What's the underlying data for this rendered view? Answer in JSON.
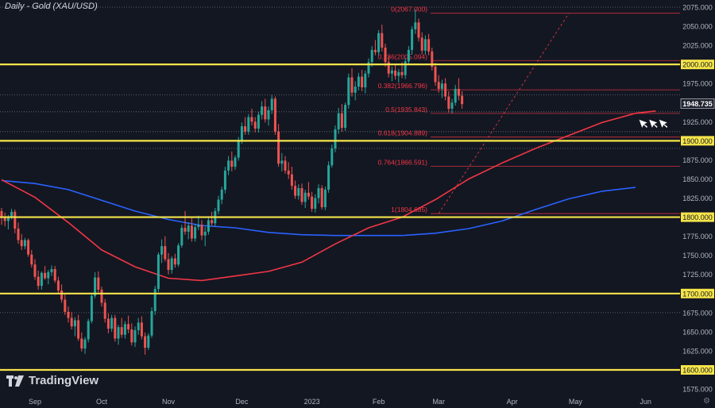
{
  "title": "Daily - Gold (XAU/USD)",
  "logo_text": "TradingView",
  "settings_icon": "gear-icon",
  "chart_data": {
    "type": "candlestick",
    "symbol": "Gold (XAU/USD)",
    "timeframe": "Daily",
    "ylim": [
      1570,
      2085
    ],
    "y_ticks": [
      1575,
      1600,
      1625,
      1650,
      1675,
      1700,
      1725,
      1750,
      1775,
      1800,
      1825,
      1850,
      1875,
      1900,
      1925,
      1950,
      1975,
      2000,
      2025,
      2050,
      2075
    ],
    "y_tick_labels": [
      "1575.000",
      "1600.000",
      "1625.000",
      "1650.000",
      "1675.000",
      "1700.000",
      "1725.000",
      "1750.000",
      "1775.000",
      "1800.000",
      "1825.000",
      "1850.000",
      "1875.000",
      "1900.000",
      "1925.000",
      "1950.000",
      "1975.000",
      "2000.000",
      "2025.000",
      "2050.000",
      "2075.000"
    ],
    "x_labels": [
      {
        "label": "Sep",
        "i": 10
      },
      {
        "label": "Oct",
        "i": 30
      },
      {
        "label": "Nov",
        "i": 50
      },
      {
        "label": "Dec",
        "i": 72
      },
      {
        "label": "2023",
        "i": 93
      },
      {
        "label": "Feb",
        "i": 113
      },
      {
        "label": "Mar",
        "i": 131
      },
      {
        "label": "Apr",
        "i": 153
      },
      {
        "label": "May",
        "i": 172
      },
      {
        "label": "Jun",
        "i": 193
      }
    ],
    "last_price": 1948.735,
    "last_price_label": "1948.735",
    "colors": {
      "up": "#26a69a",
      "down": "#ef5350",
      "ma_short": "#f23645",
      "ma_long": "#2962ff",
      "level": "#f5e44a",
      "fib": "#f23645",
      "dotted": "#9598a1",
      "price_tag_bg": "#1e222d"
    },
    "candles": [
      [
        1808,
        1812,
        1790,
        1801
      ],
      [
        1801,
        1806,
        1788,
        1795
      ],
      [
        1795,
        1803,
        1784,
        1800
      ],
      [
        1800,
        1811,
        1797,
        1807
      ],
      [
        1807,
        1810,
        1779,
        1785
      ],
      [
        1785,
        1793,
        1765,
        1770
      ],
      [
        1770,
        1778,
        1757,
        1762
      ],
      [
        1762,
        1773,
        1758,
        1770
      ],
      [
        1770,
        1772,
        1748,
        1751
      ],
      [
        1751,
        1757,
        1734,
        1738
      ],
      [
        1738,
        1745,
        1718,
        1722
      ],
      [
        1722,
        1730,
        1705,
        1710
      ],
      [
        1710,
        1729,
        1705,
        1727
      ],
      [
        1727,
        1736,
        1718,
        1720
      ],
      [
        1720,
        1731,
        1712,
        1728
      ],
      [
        1728,
        1737,
        1723,
        1732
      ],
      [
        1732,
        1736,
        1714,
        1717
      ],
      [
        1717,
        1722,
        1700,
        1704
      ],
      [
        1704,
        1712,
        1688,
        1692
      ],
      [
        1692,
        1699,
        1672,
        1676
      ],
      [
        1676,
        1683,
        1662,
        1668
      ],
      [
        1668,
        1676,
        1653,
        1657
      ],
      [
        1657,
        1669,
        1644,
        1665
      ],
      [
        1665,
        1672,
        1638,
        1641
      ],
      [
        1641,
        1649,
        1624,
        1628
      ],
      [
        1628,
        1643,
        1621,
        1640
      ],
      [
        1640,
        1667,
        1636,
        1664
      ],
      [
        1664,
        1700,
        1661,
        1697
      ],
      [
        1697,
        1728,
        1694,
        1721
      ],
      [
        1721,
        1729,
        1701,
        1705
      ],
      [
        1705,
        1709,
        1683,
        1688
      ],
      [
        1688,
        1693,
        1662,
        1667
      ],
      [
        1667,
        1674,
        1648,
        1654
      ],
      [
        1654,
        1672,
        1650,
        1668
      ],
      [
        1668,
        1672,
        1637,
        1641
      ],
      [
        1641,
        1659,
        1633,
        1656
      ],
      [
        1656,
        1668,
        1642,
        1646
      ],
      [
        1646,
        1664,
        1641,
        1660
      ],
      [
        1660,
        1671,
        1648,
        1653
      ],
      [
        1653,
        1661,
        1632,
        1636
      ],
      [
        1636,
        1657,
        1630,
        1652
      ],
      [
        1652,
        1668,
        1646,
        1662
      ],
      [
        1662,
        1670,
        1640,
        1644
      ],
      [
        1644,
        1649,
        1620,
        1629
      ],
      [
        1629,
        1648,
        1626,
        1645
      ],
      [
        1645,
        1682,
        1642,
        1677
      ],
      [
        1677,
        1710,
        1672,
        1706
      ],
      [
        1706,
        1754,
        1702,
        1751
      ],
      [
        1751,
        1771,
        1740,
        1762
      ],
      [
        1762,
        1775,
        1742,
        1745
      ],
      [
        1745,
        1753,
        1725,
        1731
      ],
      [
        1731,
        1749,
        1726,
        1746
      ],
      [
        1746,
        1752,
        1734,
        1738
      ],
      [
        1738,
        1766,
        1735,
        1763
      ],
      [
        1763,
        1790,
        1760,
        1786
      ],
      [
        1786,
        1808,
        1777,
        1781
      ],
      [
        1781,
        1793,
        1771,
        1789
      ],
      [
        1789,
        1799,
        1768,
        1772
      ],
      [
        1772,
        1791,
        1768,
        1787
      ],
      [
        1787,
        1802,
        1783,
        1790
      ],
      [
        1790,
        1796,
        1770,
        1776
      ],
      [
        1776,
        1787,
        1762,
        1781
      ],
      [
        1781,
        1800,
        1777,
        1796
      ],
      [
        1796,
        1807,
        1789,
        1792
      ],
      [
        1792,
        1812,
        1788,
        1808
      ],
      [
        1808,
        1828,
        1804,
        1823
      ],
      [
        1823,
        1840,
        1817,
        1836
      ],
      [
        1836,
        1866,
        1831,
        1861
      ],
      [
        1861,
        1880,
        1855,
        1874
      ],
      [
        1874,
        1886,
        1860,
        1866
      ],
      [
        1866,
        1881,
        1862,
        1878
      ],
      [
        1878,
        1905,
        1874,
        1901
      ],
      [
        1901,
        1924,
        1896,
        1919
      ],
      [
        1919,
        1931,
        1908,
        1912
      ],
      [
        1912,
        1935,
        1908,
        1931
      ],
      [
        1931,
        1942,
        1920,
        1925
      ],
      [
        1925,
        1931,
        1911,
        1916
      ],
      [
        1916,
        1938,
        1911,
        1934
      ],
      [
        1934,
        1952,
        1928,
        1945
      ],
      [
        1945,
        1955,
        1924,
        1928
      ],
      [
        1928,
        1945,
        1920,
        1940
      ],
      [
        1940,
        1960,
        1935,
        1955
      ],
      [
        1955,
        1958,
        1908,
        1912
      ],
      [
        1912,
        1922,
        1866,
        1870
      ],
      [
        1870,
        1884,
        1860,
        1874
      ],
      [
        1874,
        1880,
        1857,
        1861
      ],
      [
        1861,
        1872,
        1850,
        1856
      ],
      [
        1856,
        1866,
        1836,
        1841
      ],
      [
        1841,
        1848,
        1824,
        1828
      ],
      [
        1828,
        1843,
        1823,
        1838
      ],
      [
        1838,
        1844,
        1816,
        1820
      ],
      [
        1820,
        1836,
        1812,
        1832
      ],
      [
        1832,
        1846,
        1823,
        1827
      ],
      [
        1827,
        1833,
        1807,
        1811
      ],
      [
        1811,
        1830,
        1806,
        1825
      ],
      [
        1825,
        1843,
        1818,
        1838
      ],
      [
        1838,
        1842,
        1810,
        1813
      ],
      [
        1813,
        1840,
        1809,
        1836
      ],
      [
        1836,
        1873,
        1832,
        1868
      ],
      [
        1868,
        1895,
        1865,
        1890
      ],
      [
        1890,
        1920,
        1885,
        1915
      ],
      [
        1915,
        1943,
        1909,
        1936
      ],
      [
        1936,
        1948,
        1912,
        1917
      ],
      [
        1917,
        1950,
        1913,
        1947
      ],
      [
        1947,
        1988,
        1942,
        1983
      ],
      [
        1983,
        1995,
        1958,
        1963
      ],
      [
        1963,
        1978,
        1953,
        1971
      ],
      [
        1971,
        1989,
        1966,
        1984
      ],
      [
        1984,
        1993,
        1965,
        1970
      ],
      [
        1970,
        1992,
        1962,
        1988
      ],
      [
        1988,
        2008,
        1983,
        2003
      ],
      [
        2003,
        2024,
        1997,
        2019
      ],
      [
        2019,
        2032,
        2012,
        2016
      ],
      [
        2016,
        2045,
        2012,
        2041
      ],
      [
        2041,
        2052,
        2017,
        2022
      ],
      [
        2022,
        2027,
        1997,
        2003
      ],
      [
        2003,
        2011,
        1983,
        1988
      ],
      [
        1988,
        1997,
        1978,
        1992
      ],
      [
        1992,
        2001,
        1980,
        1985
      ],
      [
        1985,
        1994,
        1976,
        1990
      ],
      [
        1990,
        2003,
        1982,
        1986
      ],
      [
        1986,
        2008,
        1981,
        2004
      ],
      [
        2004,
        2024,
        1999,
        2019
      ],
      [
        2019,
        2050,
        2013,
        2046
      ],
      [
        2046,
        2072,
        2040,
        2055
      ],
      [
        2055,
        2060,
        2030,
        2035
      ],
      [
        2035,
        2042,
        2013,
        2018
      ],
      [
        2018,
        2038,
        2013,
        2033
      ],
      [
        2033,
        2040,
        2012,
        2017
      ],
      [
        2017,
        2022,
        1992,
        1997
      ],
      [
        1997,
        2002,
        1972,
        1977
      ],
      [
        1977,
        1986,
        1963,
        1968
      ],
      [
        1968,
        1980,
        1956,
        1975
      ],
      [
        1975,
        1982,
        1953,
        1958
      ],
      [
        1958,
        1965,
        1937,
        1942
      ],
      [
        1942,
        1955,
        1936,
        1950
      ],
      [
        1950,
        1973,
        1946,
        1968
      ],
      [
        1968,
        1982,
        1953,
        1959
      ],
      [
        1959,
        1965,
        1942,
        1948
      ]
    ],
    "ma_short": [
      [
        0,
        1849
      ],
      [
        10,
        1826
      ],
      [
        20,
        1793
      ],
      [
        30,
        1757
      ],
      [
        40,
        1735
      ],
      [
        50,
        1720
      ],
      [
        60,
        1717
      ],
      [
        70,
        1723
      ],
      [
        80,
        1729
      ],
      [
        90,
        1741
      ],
      [
        100,
        1765
      ],
      [
        110,
        1786
      ],
      [
        120,
        1800
      ],
      [
        130,
        1823
      ],
      [
        140,
        1850
      ],
      [
        150,
        1871
      ],
      [
        160,
        1890
      ],
      [
        170,
        1907
      ],
      [
        180,
        1924
      ],
      [
        190,
        1936
      ],
      [
        196,
        1939
      ]
    ],
    "ma_long": [
      [
        0,
        1848
      ],
      [
        10,
        1844
      ],
      [
        20,
        1836
      ],
      [
        30,
        1822
      ],
      [
        40,
        1808
      ],
      [
        50,
        1797
      ],
      [
        60,
        1789
      ],
      [
        70,
        1786
      ],
      [
        80,
        1780
      ],
      [
        90,
        1777
      ],
      [
        100,
        1776
      ],
      [
        110,
        1776
      ],
      [
        120,
        1776
      ],
      [
        130,
        1779
      ],
      [
        140,
        1785
      ],
      [
        150,
        1795
      ],
      [
        160,
        1810
      ],
      [
        170,
        1824
      ],
      [
        180,
        1834
      ],
      [
        190,
        1839
      ]
    ],
    "horizontal_levels": [
      2000,
      1900,
      1800,
      1700,
      1600
    ],
    "horizontal_level_labels": [
      "2000.000",
      "1900.000",
      "1800.000",
      "1700.000",
      "1600.000"
    ],
    "dotted_levels": [
      2075,
      1938,
      1960,
      1912,
      1890,
      1675
    ],
    "fibonacci": {
      "start_index": 130,
      "levels": [
        {
          "label": "0(2067.000)",
          "value": 2067.0
        },
        {
          "label": "0.236(2005.094)",
          "value": 2005.094
        },
        {
          "label": "0.382(1966.796)",
          "value": 1966.796
        },
        {
          "label": "0.5(1935.843)",
          "value": 1935.843
        },
        {
          "label": "0.618(1904.889)",
          "value": 1904.889
        },
        {
          "label": "0.764(1866.591)",
          "value": 1866.591
        },
        {
          "label": "1(1804.685)",
          "value": 1804.685
        }
      ],
      "trend_line": [
        [
          131,
          1804.685
        ],
        [
          170,
          2067.0
        ]
      ]
    },
    "arrows": [
      {
        "i": 191,
        "value": 1928
      },
      {
        "i": 194,
        "value": 1928
      },
      {
        "i": 197,
        "value": 1928
      }
    ]
  }
}
